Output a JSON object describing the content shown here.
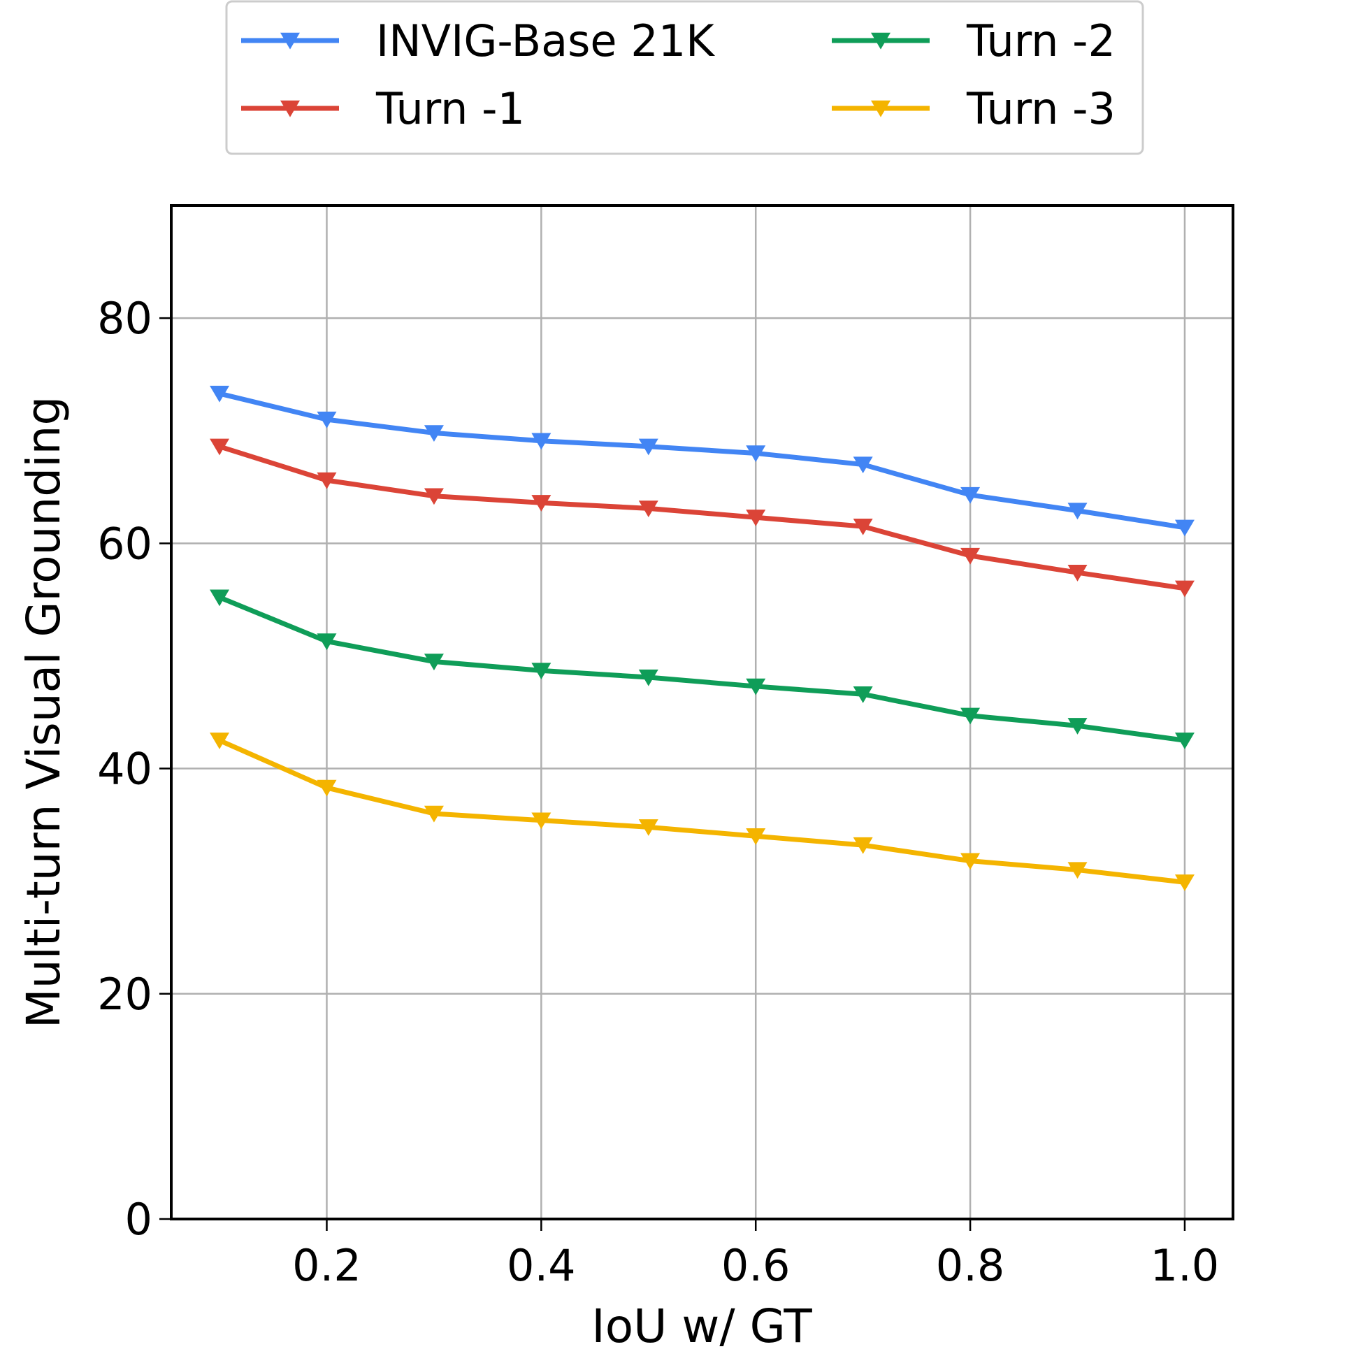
{
  "chart_data": {
    "type": "line",
    "title": "",
    "xlabel": "IoU w/ GT",
    "ylabel": "Multi-turn Visual Grounding",
    "xlim": [
      0.055,
      1.045
    ],
    "ylim": [
      0,
      90
    ],
    "xticks": [
      "0.2",
      "0.4",
      "0.6",
      "0.8",
      "1.0"
    ],
    "yticks": [
      "0",
      "20",
      "40",
      "60",
      "80"
    ],
    "grid": true,
    "legend_placement": "top-center (outside)",
    "marker": "triangle-down",
    "x": [
      0.1,
      0.2,
      0.3,
      0.4,
      0.5,
      0.6,
      0.7,
      0.8,
      0.9,
      1.0
    ],
    "series": [
      {
        "name": "INVIG-Base 21K",
        "color": "#4285F4",
        "values": [
          73.3,
          71.0,
          69.8,
          69.1,
          68.6,
          68.0,
          67.0,
          64.3,
          62.9,
          61.4
        ]
      },
      {
        "name": "Turn -1",
        "color": "#DB4437",
        "values": [
          68.6,
          65.6,
          64.2,
          63.6,
          63.1,
          62.3,
          61.5,
          58.9,
          57.4,
          56.0
        ]
      },
      {
        "name": "Turn -2",
        "color": "#0F9D58",
        "values": [
          55.2,
          51.3,
          49.5,
          48.7,
          48.1,
          47.3,
          46.6,
          44.7,
          43.8,
          42.5
        ]
      },
      {
        "name": "Turn -3",
        "color": "#F4B400",
        "values": [
          42.5,
          38.3,
          36.0,
          35.4,
          34.8,
          34.0,
          33.2,
          31.8,
          31.0,
          29.9
        ]
      }
    ]
  }
}
